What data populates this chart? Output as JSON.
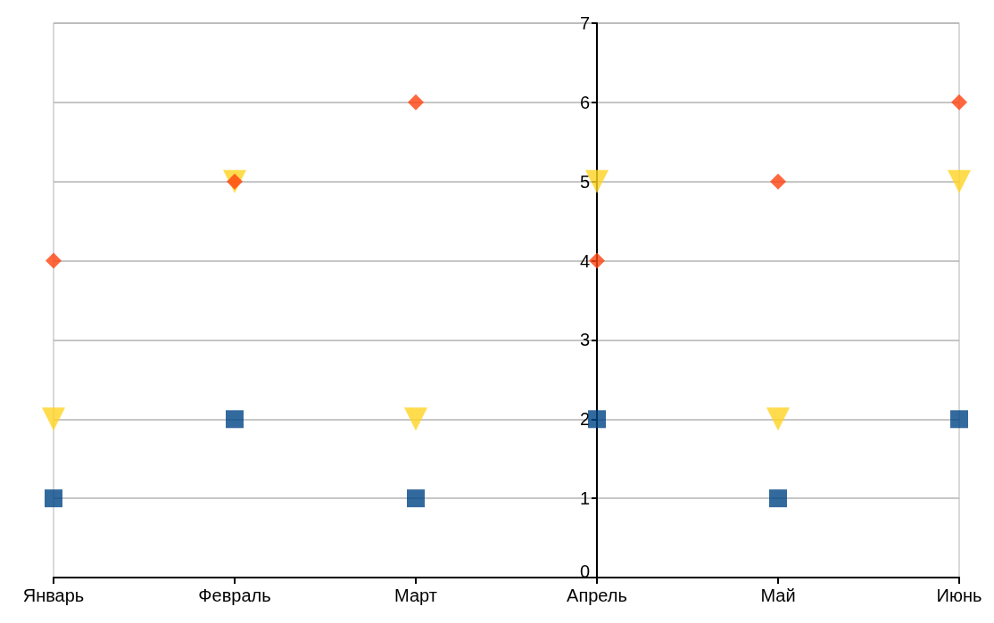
{
  "chart_data": {
    "type": "scatter",
    "categories": [
      "Январь",
      "Февраль",
      "Март",
      "Апрель",
      "Май",
      "Июнь"
    ],
    "series": [
      {
        "color": "#004586",
        "marker": "square",
        "values": [
          1,
          2,
          1,
          2,
          1,
          2
        ]
      },
      {
        "color": "#ffd320",
        "marker": "triangle",
        "values": [
          2,
          5,
          2,
          5,
          2,
          5
        ]
      },
      {
        "color": "#ff420e",
        "marker": "diamond",
        "values": [
          4,
          5,
          6,
          4,
          5,
          6
        ]
      }
    ],
    "ylim": [
      0,
      7
    ],
    "yticks": [
      0,
      1,
      2,
      3,
      4,
      5,
      6,
      7
    ],
    "grid": "y"
  }
}
